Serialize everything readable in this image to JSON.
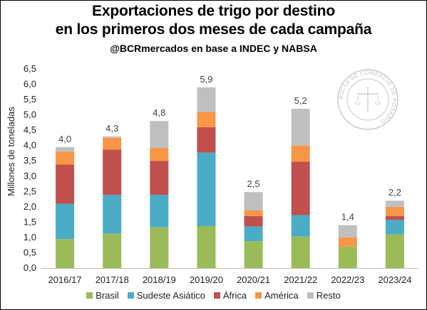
{
  "chart_data": {
    "type": "bar",
    "stacked": true,
    "title": "Exportaciones de trigo por destino",
    "title_line2": "en los primeros dos meses de cada campaña",
    "subtitle": "@BCRmercados en base a INDEC y NABSA",
    "ylabel": "Millones de toneladas",
    "xlabel": "",
    "ylim": [
      0,
      6.5
    ],
    "ytick_step": 0.5,
    "yticks": [
      "0,0",
      "0,5",
      "1,0",
      "1,5",
      "2,0",
      "2,5",
      "3,0",
      "3,5",
      "4,0",
      "4,5",
      "5,0",
      "5,5",
      "6,0",
      "6,5"
    ],
    "categories": [
      "2016/17",
      "2017/18",
      "2018/19",
      "2019/20",
      "2020/21",
      "2021/22",
      "2022/23",
      "2023/24"
    ],
    "series": [
      {
        "name": "Brasil",
        "color": "#9BBB59",
        "values": [
          0.95,
          1.12,
          1.33,
          1.37,
          0.88,
          1.03,
          0.7,
          1.1
        ]
      },
      {
        "name": "Sudeste Asiático",
        "color": "#4BACC6",
        "values": [
          1.15,
          1.27,
          1.06,
          2.4,
          0.48,
          0.7,
          0.0,
          0.47
        ]
      },
      {
        "name": "África",
        "color": "#C0504D",
        "values": [
          1.28,
          1.48,
          1.11,
          0.83,
          0.34,
          1.74,
          0.0,
          0.13
        ]
      },
      {
        "name": "América",
        "color": "#F79646",
        "values": [
          0.42,
          0.38,
          0.42,
          0.5,
          0.18,
          0.53,
          0.3,
          0.3
        ]
      },
      {
        "name": "Resto",
        "color": "#BFBFBF",
        "values": [
          0.15,
          0.05,
          0.88,
          0.8,
          0.6,
          1.2,
          0.4,
          0.2
        ]
      }
    ],
    "total_labels": [
      "4,0",
      "4,3",
      "4,8",
      "5,9",
      "2,5",
      "5,2",
      "1,4",
      "2,2"
    ],
    "grid": false,
    "legend_position": "bottom"
  },
  "watermark": {
    "text": "BOLSA DE COMERCIO DE ROSARIO",
    "kind": "seal"
  }
}
